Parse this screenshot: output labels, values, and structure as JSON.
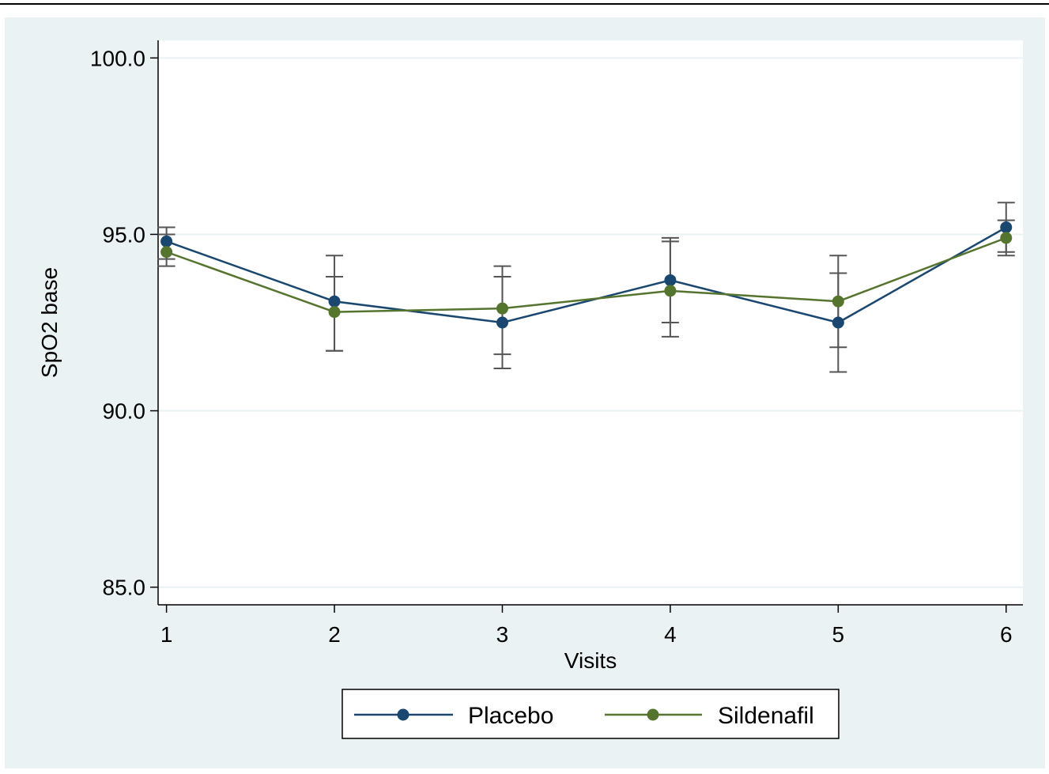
{
  "chart_data": {
    "type": "line",
    "title": "",
    "xlabel": "Visits",
    "ylabel": "SpO2 base",
    "x": [
      1,
      2,
      3,
      4,
      5,
      6
    ],
    "x_tick_labels": [
      "1",
      "2",
      "3",
      "4",
      "5",
      "6"
    ],
    "y_ticks": [
      85.0,
      90.0,
      95.0,
      100.0
    ],
    "y_tick_labels": [
      "85.0",
      "90.0",
      "95.0",
      "100.0"
    ],
    "ylim": [
      84.5,
      100.5
    ],
    "xlim": [
      0.95,
      6.1
    ],
    "grid": "horizontal",
    "legend_position": "bottom",
    "series": [
      {
        "name": "Placebo",
        "color": "#1a476f",
        "values": [
          94.8,
          93.1,
          92.5,
          93.7,
          92.5,
          95.2
        ],
        "ci_low": [
          94.3,
          91.7,
          91.2,
          92.1,
          91.1,
          94.5
        ],
        "ci_high": [
          95.2,
          94.4,
          93.8,
          94.9,
          93.9,
          95.9
        ]
      },
      {
        "name": "Sildenafil",
        "color": "#55752f",
        "values": [
          94.5,
          92.8,
          92.9,
          93.4,
          93.1,
          94.9
        ],
        "ci_low": [
          94.1,
          91.7,
          91.6,
          92.5,
          91.8,
          94.4
        ],
        "ci_high": [
          95.0,
          93.8,
          94.1,
          94.8,
          94.4,
          95.4
        ]
      }
    ],
    "colors": {
      "outer_background": "#eaf2f3",
      "plot_background": "#ffffff",
      "grid": "#eaf2f3",
      "error_bar": "#555555"
    }
  }
}
